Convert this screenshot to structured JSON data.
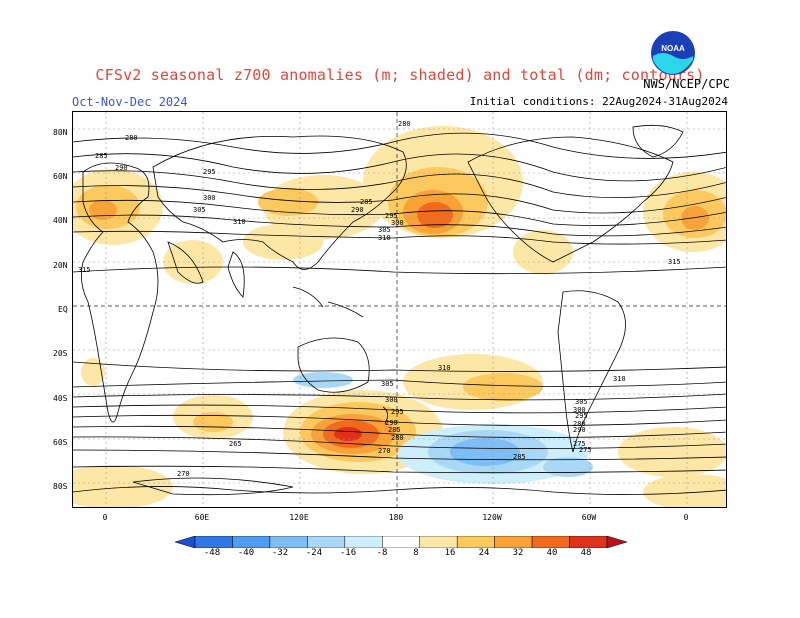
{
  "header": {
    "title": "CFSv2 seasonal z700 anomalies (m; shaded) and total (dm; contours)",
    "season": "Oct-Nov-Dec 2024",
    "initial_conditions": "Initial conditions: 22Aug2024-31Aug2024",
    "agency": "NWS/NCEP/CPC",
    "logo_text": "NOAA"
  },
  "map": {
    "lat_labels": [
      "80N",
      "60N",
      "40N",
      "20N",
      "EQ",
      "20S",
      "40S",
      "60S",
      "80S"
    ],
    "lon_labels": [
      "0",
      "60E",
      "120E",
      "180",
      "120W",
      "60W",
      "0"
    ],
    "contour_labels": [
      "280",
      "285",
      "290",
      "295",
      "300",
      "305",
      "310",
      "315",
      "280",
      "285",
      "290",
      "295",
      "300",
      "305",
      "310",
      "315",
      "310",
      "305",
      "300",
      "295",
      "290",
      "285",
      "280",
      "275",
      "270",
      "265",
      "270",
      "275",
      "280",
      "285",
      "290",
      "295",
      "300",
      "305",
      "310"
    ]
  },
  "colorbar": {
    "labels": [
      "-48",
      "-40",
      "-32",
      "-24",
      "-16",
      "-8",
      "8",
      "16",
      "24",
      "32",
      "40",
      "48"
    ],
    "colors": [
      "#1c4fd8",
      "#2f78e6",
      "#4f9cf0",
      "#7fbdf5",
      "#a9d8f7",
      "#cdeefb",
      "#ffffff",
      "#fde7a6",
      "#fcc95f",
      "#f9a238",
      "#f26a1c",
      "#e0321a",
      "#b8131a"
    ]
  }
}
